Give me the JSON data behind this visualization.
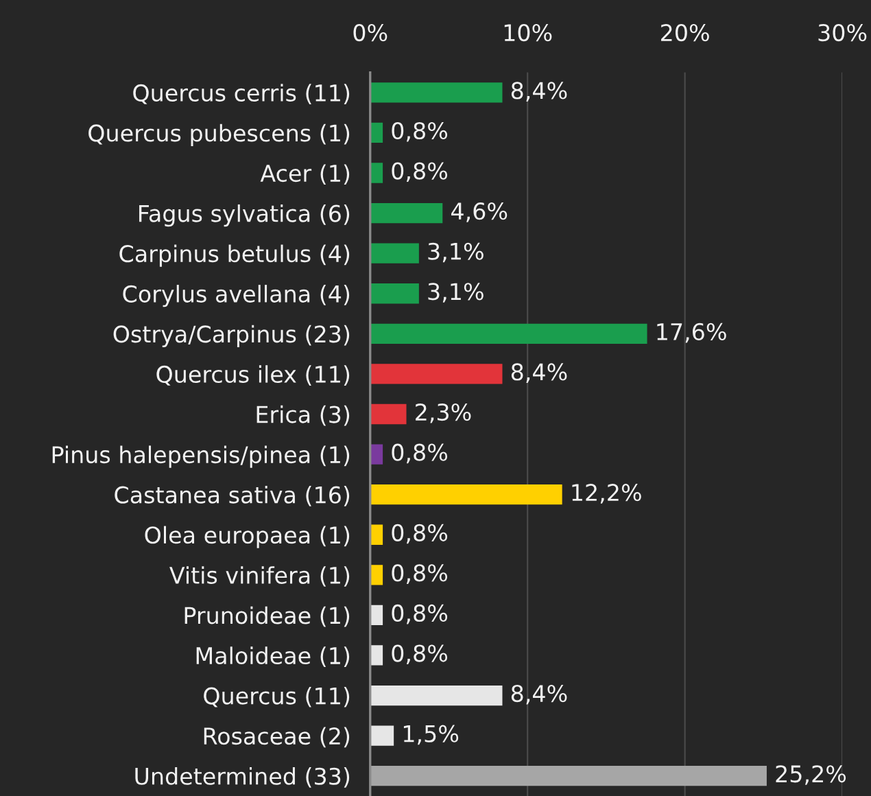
{
  "chart_data": {
    "type": "bar",
    "orientation": "horizontal",
    "categories": [
      "Quercus cerris (11)",
      "Quercus pubescens (1)",
      "Acer (1)",
      "Fagus sylvatica (6)",
      "Carpinus betulus (4)",
      "Corylus avellana (4)",
      "Ostrya/Carpinus (23)",
      "Quercus ilex (11)",
      "Erica (3)",
      "Pinus halepensis/pinea (1)",
      "Castanea sativa (16)",
      "Olea europaea (1)",
      "Vitis vinifera (1)",
      "Prunoideae (1)",
      "Maloideae (1)",
      "Quercus (11)",
      "Rosaceae (2)",
      "Undetermined (33)"
    ],
    "values": [
      8.4,
      0.8,
      0.8,
      4.6,
      3.1,
      3.1,
      17.6,
      8.4,
      2.3,
      0.8,
      12.2,
      0.8,
      0.8,
      0.8,
      0.8,
      8.4,
      1.5,
      25.2
    ],
    "value_labels": [
      "8,4%",
      "0,8%",
      "0,8%",
      "4,6%",
      "3,1%",
      "3,1%",
      "17,6%",
      "8,4%",
      "2,3%",
      "0,8%",
      "12,2%",
      "0,8%",
      "0,8%",
      "0,8%",
      "0,8%",
      "8,4%",
      "1,5%",
      "25,2%"
    ],
    "colors": [
      "#1a9e4e",
      "#1a9e4e",
      "#1a9e4e",
      "#1a9e4e",
      "#1a9e4e",
      "#1a9e4e",
      "#1a9e4e",
      "#e2343a",
      "#e2343a",
      "#7a3a9e",
      "#ffd000",
      "#ffd000",
      "#ffd000",
      "#e6e6e6",
      "#e6e6e6",
      "#e6e6e6",
      "#e6e6e6",
      "#a6a6a6"
    ],
    "xlim": [
      0,
      30
    ],
    "xticks": [
      {
        "value": 0,
        "label": "0%"
      },
      {
        "value": 10,
        "label": "10%"
      },
      {
        "value": 20,
        "label": "20%"
      },
      {
        "value": 30,
        "label": "30%"
      }
    ],
    "grid": "x"
  }
}
